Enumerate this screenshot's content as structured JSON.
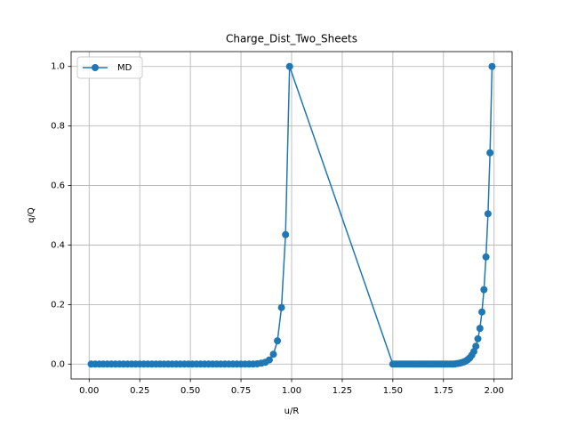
{
  "chart_data": {
    "type": "line",
    "title": "Charge_Dist_Two_Sheets",
    "x_label": "u/R",
    "y_label": "q/Q",
    "x": [
      0.01,
      0.03,
      0.05,
      0.07,
      0.09,
      0.11,
      0.13,
      0.15,
      0.17,
      0.19,
      0.21,
      0.23,
      0.25,
      0.27,
      0.29,
      0.31,
      0.33,
      0.35,
      0.37,
      0.39,
      0.41,
      0.43,
      0.45,
      0.47,
      0.49,
      0.51,
      0.53,
      0.55,
      0.57,
      0.59,
      0.61,
      0.63,
      0.65,
      0.67,
      0.69,
      0.71,
      0.73,
      0.75,
      0.77,
      0.79,
      0.81,
      0.83,
      0.85,
      0.87,
      0.89,
      0.91,
      0.93,
      0.95,
      0.97,
      0.99,
      1.5,
      1.51,
      1.52,
      1.53,
      1.54,
      1.55,
      1.56,
      1.57,
      1.58,
      1.59,
      1.6,
      1.61,
      1.62,
      1.63,
      1.64,
      1.65,
      1.66,
      1.67,
      1.68,
      1.69,
      1.7,
      1.71,
      1.72,
      1.73,
      1.74,
      1.75,
      1.76,
      1.77,
      1.78,
      1.79,
      1.8,
      1.81,
      1.82,
      1.83,
      1.84,
      1.85,
      1.86,
      1.87,
      1.88,
      1.89,
      1.9,
      1.91,
      1.92,
      1.93,
      1.94,
      1.95,
      1.96,
      1.97,
      1.98,
      1.99
    ],
    "series": [
      {
        "name": "MD",
        "color": "#1f77b4",
        "values": [
          0,
          0,
          0,
          0,
          0,
          0,
          0,
          0,
          0,
          0,
          0,
          0,
          0,
          0,
          0,
          0,
          0,
          0,
          0,
          0,
          0,
          0,
          0,
          0,
          0,
          0,
          0,
          0,
          0,
          0,
          0,
          0,
          0,
          0,
          0,
          0,
          0,
          0,
          0,
          0,
          0,
          0.001,
          0.003,
          0.006,
          0.014,
          0.033,
          0.078,
          0.19,
          0.435,
          1,
          0,
          0,
          0,
          0,
          0,
          0,
          0,
          0,
          0,
          0,
          0,
          0,
          0,
          0,
          0,
          0,
          0,
          0,
          0,
          0,
          0,
          0,
          0,
          0,
          0,
          0,
          0,
          0,
          0,
          0,
          0,
          0.001,
          0.002,
          0.003,
          0.005,
          0.007,
          0.01,
          0.015,
          0.021,
          0.03,
          0.042,
          0.06,
          0.085,
          0.12,
          0.175,
          0.25,
          0.36,
          0.505,
          0.71,
          1
        ]
      }
    ],
    "xlim": [
      -0.089,
      2.089
    ],
    "ylim": [
      -0.05,
      1.05
    ],
    "xticks": [
      {
        "value": 0,
        "label": "0.00"
      },
      0.25,
      {
        "value": 0.5,
        "label": "0.50"
      },
      0.75,
      {
        "value": 1,
        "label": "1.00"
      },
      1.25,
      {
        "value": 1.5,
        "label": "1.50"
      },
      1.75,
      {
        "value": 2,
        "label": "2.00"
      }
    ],
    "yticks": [
      {
        "value": 0,
        "label": "0.0"
      },
      0.2,
      0.4,
      0.6,
      0.8,
      {
        "value": 1,
        "label": "1.0"
      }
    ],
    "grid": true,
    "legend": "upper-left"
  }
}
